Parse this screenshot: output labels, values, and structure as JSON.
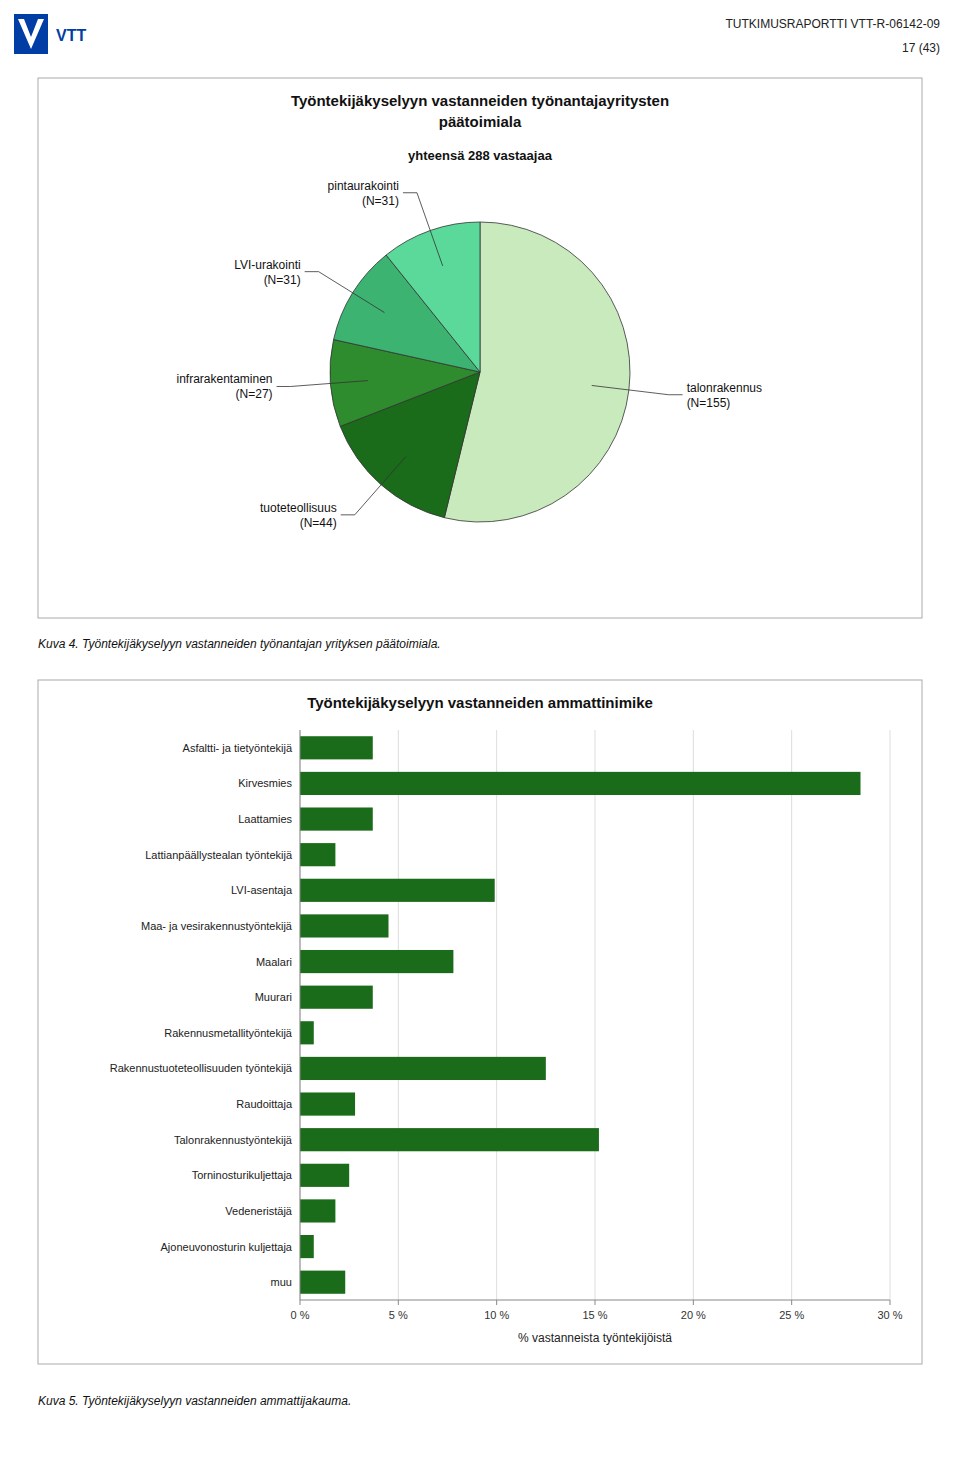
{
  "header_text": "TUTKIMUSRAPORTTI VTT-R-06142-09",
  "page_text": "17 (43)",
  "logo_text": "VTT",
  "chart_data": [
    {
      "type": "pie",
      "title": "Työntekijäkyselyyn vastanneiden työnantajayritysten\npäätoimiala",
      "subtitle": "yhteensä 288 vastaajaa",
      "categories": [
        "talonrakennus",
        "tuoteteollisuus",
        "infrarakentaminen",
        "LVI-urakointi",
        "pintaurakointi"
      ],
      "values": [
        155,
        44,
        27,
        31,
        31
      ],
      "value_labels": [
        "(N=155)",
        "(N=44)",
        "(N=27)",
        "(N=31)",
        "(N=31)"
      ],
      "colors": [
        "#c8eabc",
        "#1a6b1a",
        "#2e8b2e",
        "#3cb371",
        "#5ad99a"
      ],
      "data_labels": true,
      "caption": "Kuva 4. Työntekijäkyselyyn vastanneiden työnantajan yrityksen päätoimiala."
    },
    {
      "type": "bar",
      "orientation": "horizontal",
      "title": "Työntekijäkyselyyn vastanneiden ammattinimike",
      "categories": [
        "Asfaltti- ja tietyöntekijä",
        "Kirvesmies",
        "Laattamies",
        "Lattianpäällystealan työntekijä",
        "LVI-asentaja",
        "Maa- ja vesirakennustyöntekijä",
        "Maalari",
        "Muurari",
        "Rakennusmetallityöntekijä",
        "Rakennustuoteteollisuuden työntekijä",
        "Raudoittaja",
        "Talonrakennustyöntekijä",
        "Torninosturikuljettaja",
        "Vedeneristäjä",
        "Ajoneuvonosturin kuljettaja",
        "muu"
      ],
      "values": [
        3.7,
        28.5,
        3.7,
        1.8,
        9.9,
        4.5,
        7.8,
        3.7,
        0.7,
        12.5,
        2.8,
        15.2,
        2.5,
        1.8,
        0.7,
        2.3
      ],
      "color": "#1a6b1a",
      "xlabel": "% vastanneista työntekijöistä",
      "xlim": [
        0,
        30
      ],
      "xticks": [
        {
          "value": 0,
          "label": "0 %"
        },
        {
          "value": 5,
          "label": "5 %"
        },
        {
          "value": 10,
          "label": "10 %"
        },
        {
          "value": 15,
          "label": "15 %"
        },
        {
          "value": 20,
          "label": "20 %"
        },
        {
          "value": 25,
          "label": "25 %"
        },
        {
          "value": 30,
          "label": "30 %"
        }
      ],
      "grid": true,
      "caption": "Kuva 5. Työntekijäkyselyyn vastanneiden ammattijakauma."
    }
  ]
}
